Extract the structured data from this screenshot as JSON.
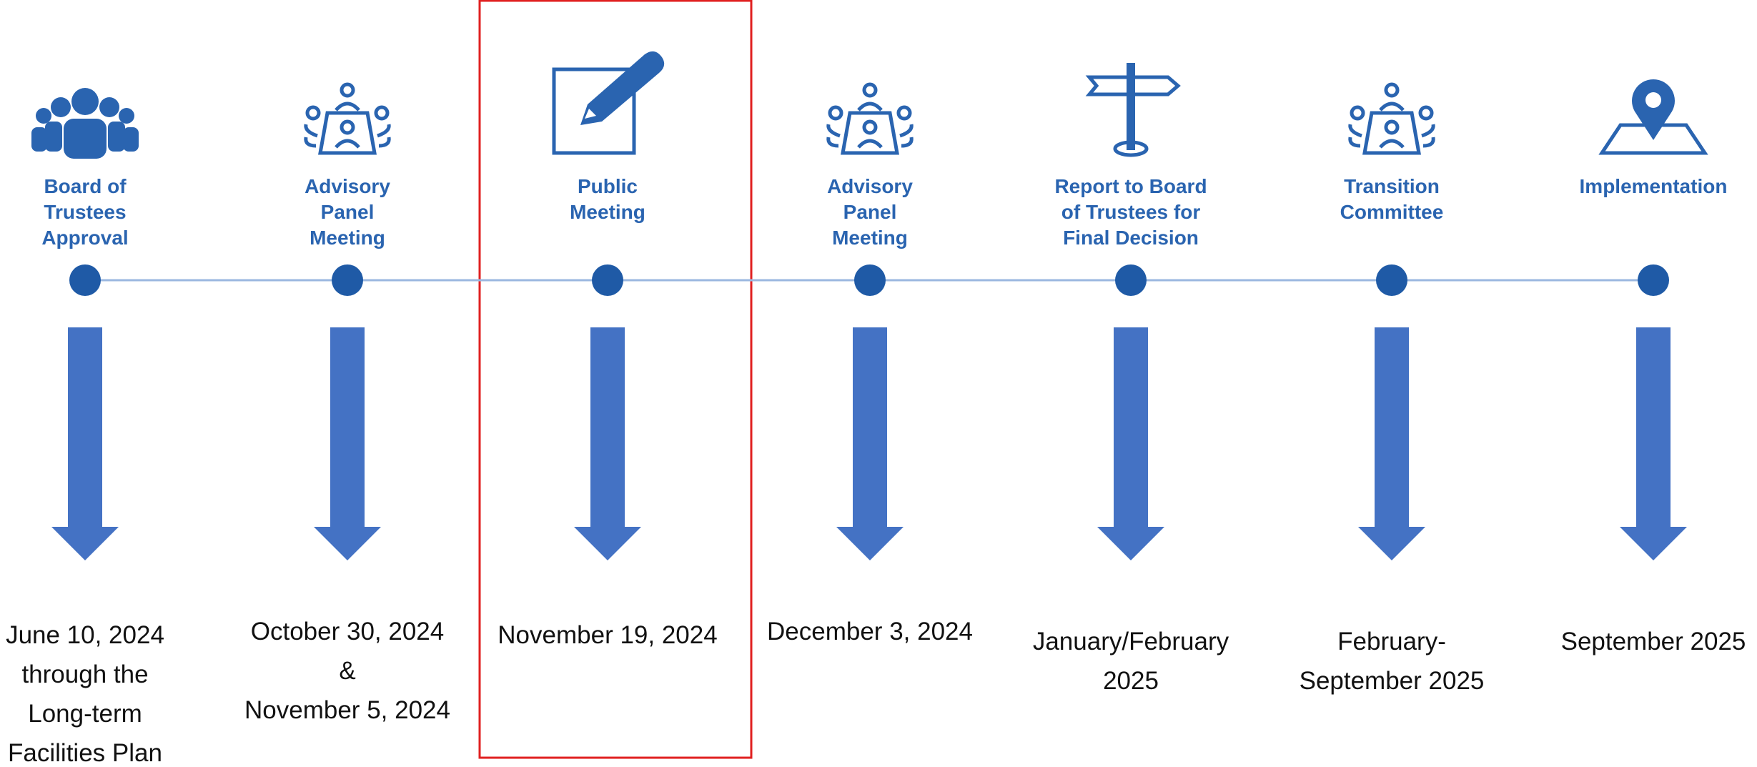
{
  "steps": [
    {
      "title": [
        "Board of",
        "Trustees",
        "Approval"
      ],
      "date": [
        "June 10, 2024",
        "through the",
        "Long-term",
        "Facilities Plan"
      ]
    },
    {
      "title": [
        "Advisory",
        "Panel",
        "Meeting"
      ],
      "date": [
        "October 30, 2024",
        "&",
        "November 5, 2024"
      ]
    },
    {
      "title": [
        "Public",
        "Meeting"
      ],
      "date": [
        "November 19, 2024"
      ]
    },
    {
      "title": [
        "Advisory",
        "Panel",
        "Meeting"
      ],
      "date": [
        "December 3, 2024"
      ]
    },
    {
      "title": [
        "Report to Board",
        "of Trustees for",
        "Final Decision"
      ],
      "date": [
        "January/February",
        "2025"
      ]
    },
    {
      "title": [
        "Transition",
        "Committee"
      ],
      "date": [
        "February-",
        "September 2025"
      ]
    },
    {
      "title": [
        "Implementation"
      ],
      "date": [
        "September 2025"
      ]
    }
  ]
}
